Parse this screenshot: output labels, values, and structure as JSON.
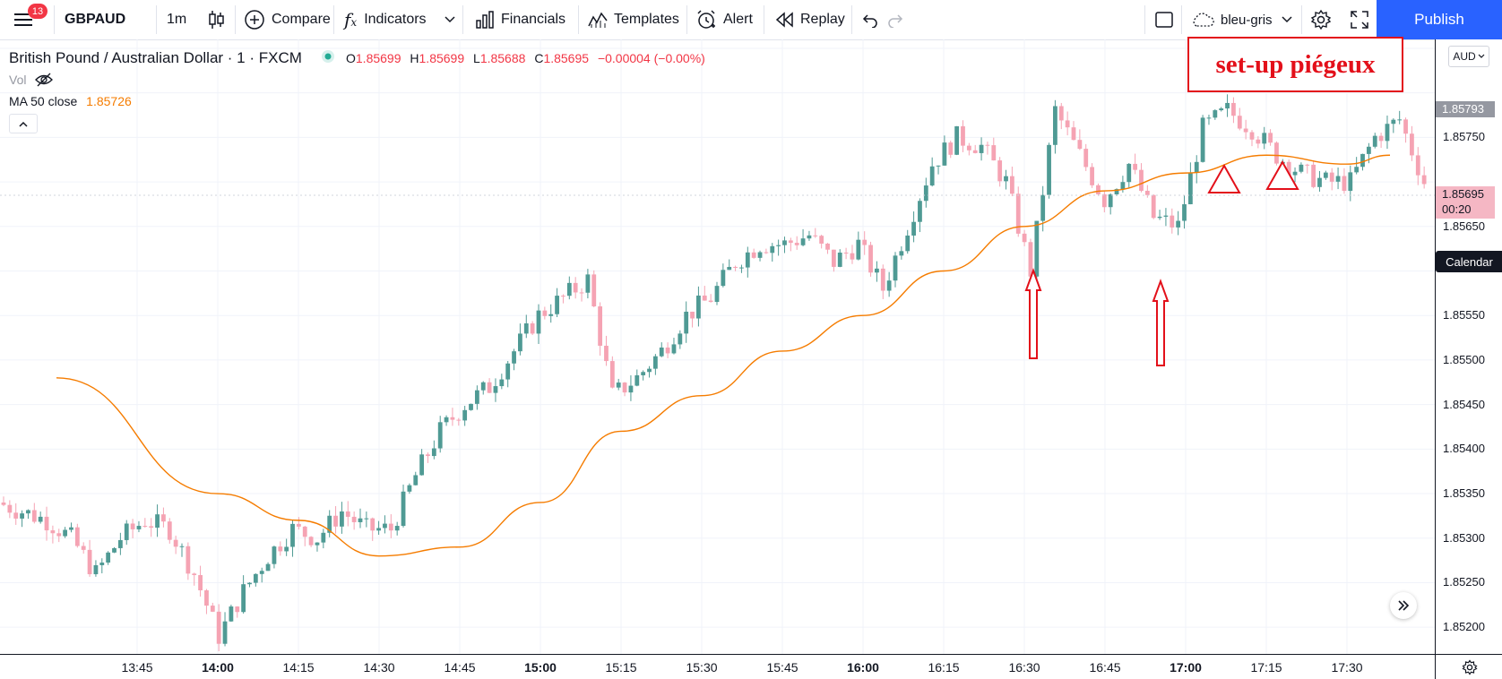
{
  "toolbar": {
    "menu_badge": "13",
    "symbol": "GBPAUD",
    "interval": "1m",
    "compare": "Compare",
    "indicators": "Indicators",
    "financials": "Financials",
    "templates": "Templates",
    "alert": "Alert",
    "replay": "Replay",
    "layout_name": "bleu-gris",
    "publish": "Publish"
  },
  "legend": {
    "title": "British Pound / Australian Dollar · 1 · FXCM",
    "o_label": "O",
    "o": "1.85699",
    "h_label": "H",
    "h": "1.85699",
    "l_label": "L",
    "l": "1.85688",
    "c_label": "C",
    "c": "1.85695",
    "change": "−0.00004 (−0.00%)",
    "vol": "Vol",
    "ma_label": "MA 50 close",
    "ma_value": "1.85726"
  },
  "price_axis": {
    "currency": "AUD",
    "ticks": [
      "1.85750",
      "1.85650",
      "1.85550",
      "1.85500",
      "1.85450",
      "1.85400",
      "1.85350",
      "1.85300",
      "1.85250",
      "1.85200"
    ],
    "current_label": "1.85793",
    "last_price": "1.85695",
    "countdown": "00:20",
    "calendar": "Calendar"
  },
  "time_axis": {
    "ticks": [
      {
        "label": "13:45",
        "bold": false
      },
      {
        "label": "14:00",
        "bold": true
      },
      {
        "label": "14:15",
        "bold": false
      },
      {
        "label": "14:30",
        "bold": false
      },
      {
        "label": "14:45",
        "bold": false
      },
      {
        "label": "15:00",
        "bold": true
      },
      {
        "label": "15:15",
        "bold": false
      },
      {
        "label": "15:30",
        "bold": false
      },
      {
        "label": "15:45",
        "bold": false
      },
      {
        "label": "16:00",
        "bold": true
      },
      {
        "label": "16:15",
        "bold": false
      },
      {
        "label": "16:30",
        "bold": false
      },
      {
        "label": "16:45",
        "bold": false
      },
      {
        "label": "17:00",
        "bold": true
      },
      {
        "label": "17:15",
        "bold": false
      },
      {
        "label": "17:30",
        "bold": false
      }
    ]
  },
  "annotation": {
    "text": "set-up piégeux"
  },
  "colors": {
    "up": "#4f9a94",
    "down": "#f5a3b3",
    "ma": "#f57c00",
    "annotation": "#e3101a",
    "accent": "#2962ff"
  },
  "chart_data": {
    "type": "candlestick",
    "ylim": [
      1.8517,
      1.8586
    ],
    "ma_series": [
      {
        "t": "13:30",
        "v": 1.8548
      },
      {
        "t": "14:00",
        "v": 1.8535
      },
      {
        "t": "14:15",
        "v": 1.8532
      },
      {
        "t": "14:30",
        "v": 1.8528
      },
      {
        "t": "14:45",
        "v": 1.8529
      },
      {
        "t": "15:00",
        "v": 1.8534
      },
      {
        "t": "15:15",
        "v": 1.8542
      },
      {
        "t": "15:30",
        "v": 1.8546
      },
      {
        "t": "15:45",
        "v": 1.8551
      },
      {
        "t": "16:00",
        "v": 1.8555
      },
      {
        "t": "16:15",
        "v": 1.856
      },
      {
        "t": "16:30",
        "v": 1.8565
      },
      {
        "t": "16:45",
        "v": 1.8569
      },
      {
        "t": "17:00",
        "v": 1.8571
      },
      {
        "t": "17:15",
        "v": 1.8573
      },
      {
        "t": "17:30",
        "v": 1.8572
      },
      {
        "t": "17:38",
        "v": 1.8573
      }
    ],
    "price_path": [
      1.8534,
      1.8533,
      1.8532,
      1.853,
      1.8526,
      1.853,
      1.8532,
      1.8531,
      1.8526,
      1.8519,
      1.8524,
      1.8528,
      1.8531,
      1.853,
      1.8533,
      1.8531,
      1.8531,
      1.8537,
      1.8542,
      1.8545,
      1.8547,
      1.8551,
      1.8555,
      1.8557,
      1.8559,
      1.8546,
      1.8548,
      1.8551,
      1.8555,
      1.8557,
      1.8561,
      1.8563,
      1.8563,
      1.8564,
      1.8561,
      1.8563,
      1.8558,
      1.8565,
      1.8572,
      1.8575,
      1.8574,
      1.857,
      1.856,
      1.8578,
      1.8573,
      1.8568,
      1.8572,
      1.8566,
      1.8565,
      1.8576,
      1.8578,
      1.8576,
      1.8573,
      1.8571,
      1.857,
      1.857,
      1.8575,
      1.8577,
      1.857
    ]
  }
}
